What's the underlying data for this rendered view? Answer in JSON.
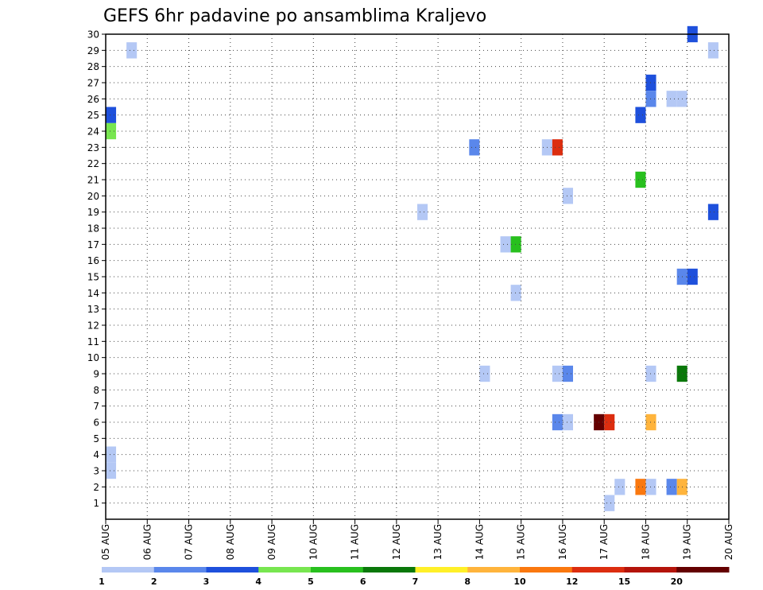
{
  "chart_data": {
    "type": "heatmap",
    "title": "GEFS 6hr padavine po ansamblima Kraljevo",
    "x_tick_labels": [
      "05 AUG",
      "06 AUG",
      "07 AUG",
      "08 AUG",
      "09 AUG",
      "10 AUG",
      "11 AUG",
      "12 AUG",
      "13 AUG",
      "14 AUG",
      "15 AUG",
      "16 AUG",
      "17 AUG",
      "18 AUG",
      "19 AUG",
      "20 AUG"
    ],
    "y_tick_labels": [
      "1",
      "2",
      "3",
      "4",
      "5",
      "6",
      "7",
      "8",
      "9",
      "10",
      "11",
      "12",
      "13",
      "14",
      "15",
      "16",
      "17",
      "18",
      "19",
      "20",
      "21",
      "22",
      "23",
      "24",
      "25",
      "26",
      "27",
      "28",
      "29",
      "30"
    ],
    "x_range_days": [
      0,
      15
    ],
    "y_range": [
      0,
      30
    ],
    "grid": true,
    "colorbar": {
      "labels": [
        "1",
        "2",
        "3",
        "4",
        "5",
        "6",
        "7",
        "8",
        "10",
        "12",
        "15",
        "20"
      ],
      "colors": [
        "#b4c8f5",
        "#5a87eb",
        "#1e50dc",
        "#78e650",
        "#28c01e",
        "#0a780a",
        "#fff028",
        "#ffb43c",
        "#fa780f",
        "#dc2d0f",
        "#b4140a",
        "#640000"
      ]
    },
    "cells": [
      {
        "day": 0.0,
        "member": 25,
        "cat": 2
      },
      {
        "day": 0.0,
        "member": 24,
        "cat": 3
      },
      {
        "day": 0.0,
        "member": 4,
        "cat": 0
      },
      {
        "day": 0.0,
        "member": 3,
        "cat": 0
      },
      {
        "day": 0.5,
        "member": 29,
        "cat": 0
      },
      {
        "day": 7.5,
        "member": 19,
        "cat": 0
      },
      {
        "day": 8.75,
        "member": 23,
        "cat": 1
      },
      {
        "day": 9.0,
        "member": 9,
        "cat": 0
      },
      {
        "day": 9.5,
        "member": 17,
        "cat": 0
      },
      {
        "day": 9.75,
        "member": 17,
        "cat": 4
      },
      {
        "day": 9.75,
        "member": 14,
        "cat": 0
      },
      {
        "day": 10.5,
        "member": 23,
        "cat": 0
      },
      {
        "day": 10.75,
        "member": 23,
        "cat": 9
      },
      {
        "day": 10.75,
        "member": 9,
        "cat": 0
      },
      {
        "day": 10.75,
        "member": 6,
        "cat": 1
      },
      {
        "day": 11.0,
        "member": 20,
        "cat": 0
      },
      {
        "day": 11.0,
        "member": 9,
        "cat": 1
      },
      {
        "day": 11.0,
        "member": 6,
        "cat": 0
      },
      {
        "day": 11.75,
        "member": 6,
        "cat": 11
      },
      {
        "day": 12.0,
        "member": 6,
        "cat": 9
      },
      {
        "day": 12.0,
        "member": 1,
        "cat": 0
      },
      {
        "day": 12.25,
        "member": 2,
        "cat": 0
      },
      {
        "day": 12.75,
        "member": 25,
        "cat": 2
      },
      {
        "day": 12.75,
        "member": 21,
        "cat": 4
      },
      {
        "day": 12.75,
        "member": 2,
        "cat": 8
      },
      {
        "day": 13.0,
        "member": 27,
        "cat": 2
      },
      {
        "day": 13.0,
        "member": 26,
        "cat": 1
      },
      {
        "day": 13.0,
        "member": 9,
        "cat": 0
      },
      {
        "day": 13.0,
        "member": 6,
        "cat": 7
      },
      {
        "day": 13.0,
        "member": 2,
        "cat": 0
      },
      {
        "day": 13.5,
        "member": 26,
        "cat": 0
      },
      {
        "day": 13.5,
        "member": 2,
        "cat": 1
      },
      {
        "day": 13.75,
        "member": 26,
        "cat": 0
      },
      {
        "day": 13.75,
        "member": 15,
        "cat": 1
      },
      {
        "day": 13.75,
        "member": 9,
        "cat": 5
      },
      {
        "day": 13.75,
        "member": 2,
        "cat": 7
      },
      {
        "day": 14.0,
        "member": 15,
        "cat": 2
      },
      {
        "day": 14.0,
        "member": 30,
        "cat": 2
      },
      {
        "day": 14.5,
        "member": 29,
        "cat": 0
      },
      {
        "day": 14.5,
        "member": 19,
        "cat": 2
      }
    ]
  }
}
